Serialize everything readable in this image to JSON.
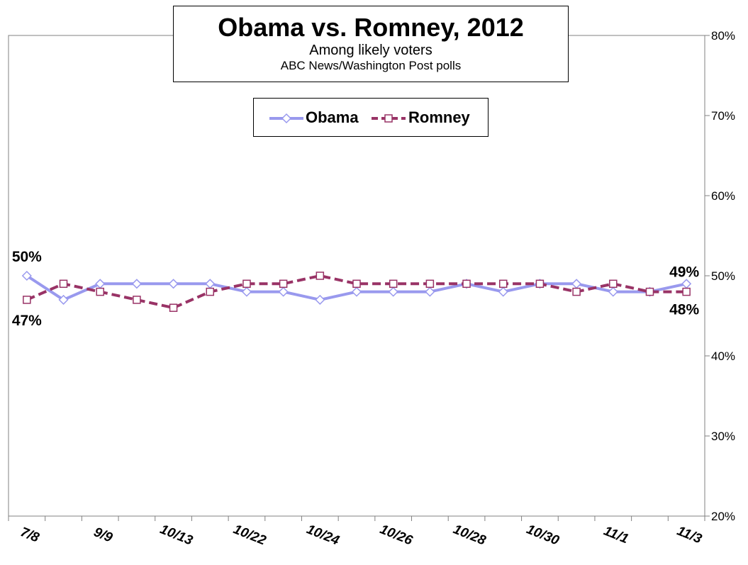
{
  "title": {
    "main": "Obama vs. Romney, 2012",
    "sub1": "Among likely voters",
    "sub2": "ABC News/Washington Post polls"
  },
  "chart_data": {
    "type": "line",
    "x_categories": [
      "7/8",
      "",
      "9/9",
      "",
      "10/13",
      "",
      "10/22",
      "",
      "10/24",
      "",
      "10/26",
      "",
      "10/28",
      "",
      "10/30",
      "",
      "11/1",
      "",
      "11/3"
    ],
    "y_axis": {
      "min": 20,
      "max": 80,
      "step": 10,
      "position": "right",
      "tick_labels": [
        "20%",
        "30%",
        "40%",
        "50%",
        "60%",
        "70%",
        "80%"
      ]
    },
    "grid": false,
    "legend": {
      "position": "top-center"
    },
    "series": [
      {
        "name": "Obama",
        "color": "#9999ee",
        "marker": "diamond",
        "dash": "solid",
        "values": [
          50,
          47,
          49,
          49,
          49,
          49,
          48,
          48,
          47,
          48,
          48,
          48,
          49,
          48,
          49,
          49,
          48,
          48,
          49
        ]
      },
      {
        "name": "Romney",
        "color": "#993366",
        "marker": "square",
        "dash": "dashed",
        "values": [
          47,
          49,
          48,
          47,
          46,
          48,
          49,
          49,
          50,
          49,
          49,
          49,
          49,
          49,
          49,
          48,
          49,
          48,
          48
        ]
      }
    ],
    "data_labels": [
      {
        "series": "Obama",
        "index": 0,
        "text": "50%"
      },
      {
        "series": "Romney",
        "index": 0,
        "text": "47%"
      },
      {
        "series": "Obama",
        "index": 18,
        "text": "49%"
      },
      {
        "series": "Romney",
        "index": 18,
        "text": "48%"
      }
    ]
  }
}
